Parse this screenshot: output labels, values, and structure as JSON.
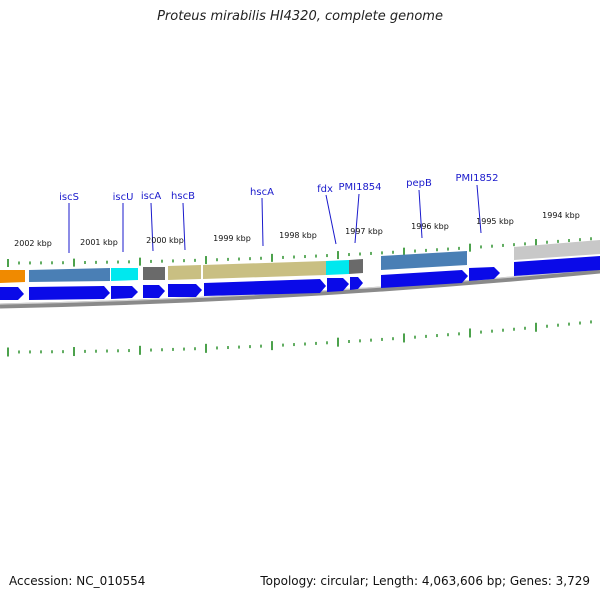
{
  "title": "Proteus mirabilis HI4320, complete genome",
  "footer": {
    "accession": "Accession: NC_010554",
    "summary": "Topology: circular; Length: 4,063,606 bp; Genes: 3,729"
  },
  "colors": {
    "cds_strand": "#0a0ae8",
    "backbone": "#8a8a8a",
    "tick": "#1f8a1f",
    "label": "#1a1acc",
    "steelblue_feature": "#4a7fb5",
    "cyan_feature": "#00e8ee",
    "gray_feature": "#6a6a6a",
    "khaki_feature": "#c9bf82",
    "orange_feature": "#f08a00",
    "lightgray_feature": "#c8c8c8"
  },
  "kbp_labels": [
    "2002 kbp",
    "2001 kbp",
    "2000 kbp",
    "1999 kbp",
    "1998 kbp",
    "1997 kbp",
    "1996 kbp",
    "1995 kbp",
    "1994 kbp"
  ],
  "gene_labels": [
    "iscS",
    "iscU",
    "iscA",
    "hscB",
    "hscA",
    "fdx",
    "PMI1854",
    "pepB",
    "PMI1852"
  ]
}
